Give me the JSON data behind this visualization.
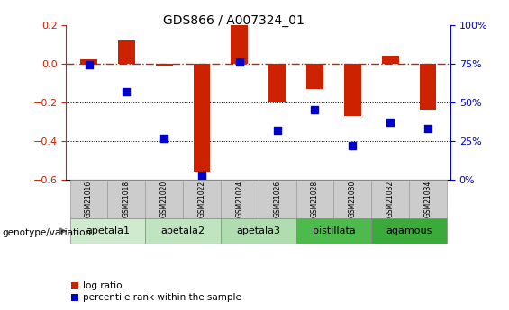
{
  "title": "GDS866 / A007324_01",
  "samples": [
    "GSM21016",
    "GSM21018",
    "GSM21020",
    "GSM21022",
    "GSM21024",
    "GSM21026",
    "GSM21028",
    "GSM21030",
    "GSM21032",
    "GSM21034"
  ],
  "log_ratio": [
    0.02,
    0.12,
    -0.01,
    -0.56,
    0.2,
    -0.2,
    -0.13,
    -0.27,
    0.04,
    -0.24
  ],
  "percentile_rank": [
    74,
    57,
    27,
    3,
    76,
    32,
    45,
    22,
    37,
    33
  ],
  "groups": [
    {
      "label": "apetala1",
      "color": "#d0ead0",
      "indices": [
        0,
        1
      ]
    },
    {
      "label": "apetala2",
      "color": "#c0e4c0",
      "indices": [
        2,
        3
      ]
    },
    {
      "label": "apetala3",
      "color": "#b0ddb0",
      "indices": [
        4,
        5
      ]
    },
    {
      "label": "pistillata",
      "color": "#4cbb4c",
      "indices": [
        6,
        7
      ]
    },
    {
      "label": "agamous",
      "color": "#3aaa3a",
      "indices": [
        8,
        9
      ]
    }
  ],
  "ylim_left": [
    -0.6,
    0.2
  ],
  "ylim_right": [
    0,
    100
  ],
  "yticks_left": [
    -0.6,
    -0.4,
    -0.2,
    0.0,
    0.2
  ],
  "yticks_right": [
    0,
    25,
    50,
    75,
    100
  ],
  "bar_color": "#cc2200",
  "dot_color": "#0000cc",
  "hline_color": "#cc2200",
  "dotline_color": "#000000",
  "background_color": "#ffffff",
  "plot_bg_color": "#ffffff",
  "legend_red_label": "log ratio",
  "legend_blue_label": "percentile rank within the sample",
  "group_label": "genotype/variation",
  "bar_width": 0.45,
  "dot_size": 28,
  "sample_box_color": "#cccccc",
  "sample_box_edge": "#999999"
}
